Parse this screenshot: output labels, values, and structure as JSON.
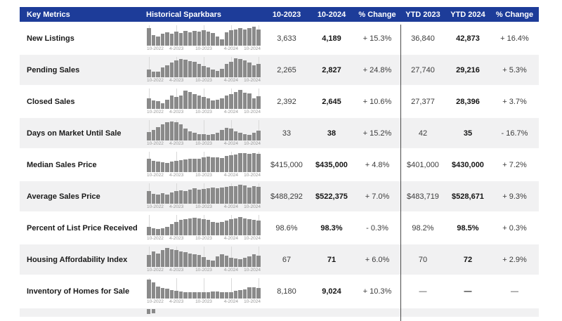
{
  "report": {
    "columns": [
      "Key Metrics",
      "Historical Sparkbars",
      "10-2023",
      "10-2024",
      "% Change",
      "YTD 2023",
      "YTD 2024",
      "% Change"
    ],
    "sparkbar_axis_labels": [
      "10-2022",
      "4-2023",
      "10-2023",
      "4-2024",
      "10-2024"
    ],
    "rows": [
      {
        "metric": "New Listings",
        "sparkbars": [
          0.92,
          0.55,
          0.5,
          0.62,
          0.72,
          0.63,
          0.73,
          0.68,
          0.78,
          0.72,
          0.78,
          0.73,
          0.8,
          0.75,
          0.68,
          0.5,
          0.33,
          0.72,
          0.8,
          0.86,
          0.93,
          0.87,
          0.92,
          1.0,
          0.87
        ],
        "values": [
          "3,633",
          "4,189",
          "+ 15.3%",
          "36,840",
          "42,873",
          "+ 16.4%"
        ]
      },
      {
        "metric": "Pending Sales",
        "sparkbars": [
          0.42,
          0.3,
          0.28,
          0.52,
          0.62,
          0.78,
          0.9,
          0.95,
          0.93,
          0.85,
          0.8,
          0.72,
          0.6,
          0.52,
          0.42,
          0.35,
          0.45,
          0.72,
          0.83,
          1.0,
          0.95,
          0.88,
          0.78,
          0.62,
          0.72
        ],
        "values": [
          "2,265",
          "2,827",
          "+ 24.8%",
          "27,740",
          "29,216",
          "+ 5.3%"
        ]
      },
      {
        "metric": "Closed Sales",
        "sparkbars": [
          0.55,
          0.45,
          0.42,
          0.3,
          0.5,
          0.72,
          0.62,
          0.7,
          0.95,
          0.9,
          0.78,
          0.72,
          0.62,
          0.55,
          0.45,
          0.5,
          0.55,
          0.7,
          0.78,
          0.88,
          1.0,
          0.85,
          0.8,
          0.55,
          0.68
        ],
        "values": [
          "2,392",
          "2,645",
          "+ 10.6%",
          "27,377",
          "28,396",
          "+ 3.7%"
        ]
      },
      {
        "metric": "Days on Market Until Sale",
        "sparkbars": [
          0.45,
          0.55,
          0.72,
          0.85,
          0.97,
          1.0,
          0.95,
          0.85,
          0.62,
          0.48,
          0.4,
          0.35,
          0.33,
          0.3,
          0.35,
          0.42,
          0.55,
          0.65,
          0.62,
          0.5,
          0.4,
          0.33,
          0.3,
          0.42,
          0.52
        ],
        "values": [
          "33",
          "38",
          "+ 15.2%",
          "42",
          "35",
          "- 16.7%"
        ]
      },
      {
        "metric": "Median Sales Price",
        "sparkbars": [
          0.7,
          0.58,
          0.56,
          0.52,
          0.48,
          0.56,
          0.6,
          0.64,
          0.66,
          0.7,
          0.72,
          0.72,
          0.76,
          0.8,
          0.76,
          0.78,
          0.73,
          0.84,
          0.9,
          0.94,
          1.0,
          0.99,
          0.97,
          1.0,
          0.95
        ],
        "values": [
          "$415,000",
          "$435,000",
          "+ 4.8%",
          "$401,000",
          "$430,000",
          "+ 7.2%"
        ]
      },
      {
        "metric": "Average Sales Price",
        "sparkbars": [
          0.66,
          0.52,
          0.5,
          0.56,
          0.47,
          0.6,
          0.65,
          0.7,
          0.68,
          0.75,
          0.8,
          0.73,
          0.78,
          0.82,
          0.85,
          0.8,
          0.87,
          0.9,
          0.94,
          0.91,
          1.0,
          0.95,
          0.85,
          0.93,
          0.88
        ],
        "values": [
          "$488,292",
          "$522,375",
          "+ 7.0%",
          "$483,719",
          "$528,671",
          "+ 9.3%"
        ]
      },
      {
        "metric": "Percent of List Price Received",
        "sparkbars": [
          0.45,
          0.36,
          0.33,
          0.36,
          0.45,
          0.6,
          0.7,
          0.8,
          0.86,
          0.9,
          0.92,
          0.9,
          0.86,
          0.8,
          0.72,
          0.66,
          0.7,
          0.76,
          0.85,
          0.9,
          0.95,
          0.9,
          0.86,
          0.8,
          0.78
        ],
        "values": [
          "98.6%",
          "98.3%",
          "- 0.3%",
          "98.2%",
          "98.5%",
          "+ 0.3%"
        ]
      },
      {
        "metric": "Housing Affordability Index",
        "sparkbars": [
          0.62,
          0.8,
          0.72,
          0.9,
          1.0,
          0.92,
          0.88,
          0.8,
          0.76,
          0.72,
          0.68,
          0.62,
          0.52,
          0.38,
          0.35,
          0.55,
          0.65,
          0.6,
          0.48,
          0.45,
          0.42,
          0.48,
          0.55,
          0.68,
          0.58
        ],
        "values": [
          "67",
          "71",
          "+ 6.0%",
          "70",
          "72",
          "+ 2.9%"
        ]
      },
      {
        "metric": "Inventory of Homes for Sale",
        "sparkbars": [
          1.0,
          0.85,
          0.62,
          0.55,
          0.52,
          0.45,
          0.4,
          0.36,
          0.33,
          0.33,
          0.35,
          0.35,
          0.35,
          0.33,
          0.38,
          0.38,
          0.35,
          0.33,
          0.35,
          0.4,
          0.45,
          0.5,
          0.58,
          0.6,
          0.55
        ],
        "values": [
          "8,180",
          "9,024",
          "+ 10.3%",
          "—",
          "—",
          "—"
        ]
      }
    ],
    "partial_row_bars": [
      0.9,
      0.72
    ]
  },
  "colors": {
    "header_bg": "#1d3c99",
    "row_alt_bg": "#f1f1f2",
    "bar_fill": "#8a8a8a",
    "gridline": "#d9d9d9",
    "divider": "#4a4a4a"
  }
}
